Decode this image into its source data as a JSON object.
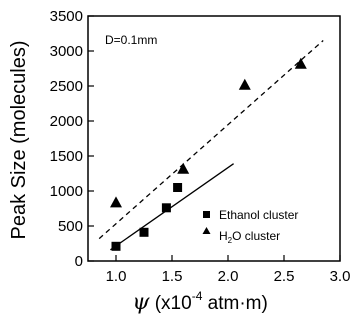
{
  "chart_data": {
    "type": "scatter",
    "ylabel": "Peak Size (molecules)",
    "xlabel": {
      "symbol": "ψ",
      "prefix": " (x10",
      "exponent": "-4",
      "suffix": " atm·m)"
    },
    "annotation": "D=0.1mm",
    "xlim": [
      0.75,
      3.0
    ],
    "ylim": [
      0,
      3500
    ],
    "xticks": [
      {
        "value": 1.0,
        "label": "1.0"
      },
      {
        "value": 1.5,
        "label": "1.5"
      },
      {
        "value": 2.0,
        "label": "2.0"
      },
      {
        "value": 2.5,
        "label": "2.5"
      },
      {
        "value": 3.0,
        "label": "3.0"
      }
    ],
    "yticks": [
      {
        "value": 0,
        "label": "0"
      },
      {
        "value": 500,
        "label": "500"
      },
      {
        "value": 1000,
        "label": "1000"
      },
      {
        "value": 1500,
        "label": "1500"
      },
      {
        "value": 2000,
        "label": "2000"
      },
      {
        "value": 2500,
        "label": "2500"
      },
      {
        "value": 3000,
        "label": "3000"
      },
      {
        "value": 3500,
        "label": "3500"
      }
    ],
    "grid": false,
    "legend_position": "bottom-right",
    "series": [
      {
        "name": "Ethanol cluster",
        "marker": "square",
        "points": [
          [
            1.0,
            210
          ],
          [
            1.25,
            410
          ],
          [
            1.45,
            760
          ],
          [
            1.55,
            1050
          ]
        ]
      },
      {
        "name_main": "H",
        "name_sub": "2",
        "name_rest": "O cluster",
        "marker": "triangle",
        "points": [
          [
            1.0,
            830
          ],
          [
            1.6,
            1310
          ],
          [
            2.15,
            2510
          ],
          [
            2.65,
            2810
          ]
        ]
      }
    ],
    "lines": [
      {
        "style": "solid",
        "from": [
          0.95,
          160
        ],
        "to": [
          2.05,
          1390
        ]
      },
      {
        "style": "dashed",
        "from": [
          0.85,
          320
        ],
        "to": [
          2.85,
          3150
        ]
      }
    ]
  }
}
